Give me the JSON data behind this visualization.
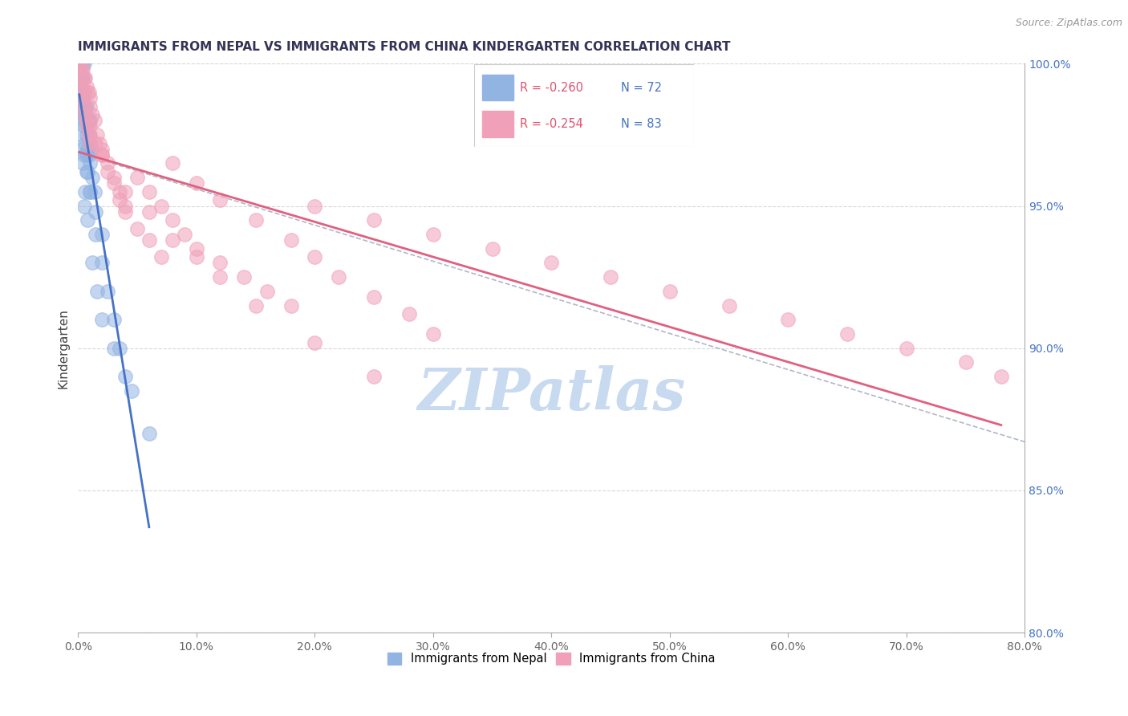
{
  "title": "IMMIGRANTS FROM NEPAL VS IMMIGRANTS FROM CHINA KINDERGARTEN CORRELATION CHART",
  "source_text": "Source: ZipAtlas.com",
  "ylabel": "Kindergarten",
  "xlim": [
    0.0,
    80.0
  ],
  "ylim": [
    80.0,
    100.0
  ],
  "yticks": [
    80.0,
    85.0,
    90.0,
    95.0,
    100.0
  ],
  "xticks": [
    0.0,
    10.0,
    20.0,
    30.0,
    40.0,
    50.0,
    60.0,
    70.0,
    80.0
  ],
  "nepal_color": "#92b4e3",
  "china_color": "#f0a0b8",
  "nepal_line_color": "#4472c4",
  "china_line_color": "#e06080",
  "nepal_R": -0.26,
  "nepal_N": 72,
  "china_R": -0.254,
  "china_N": 83,
  "legend_nepal_label": "Immigrants from Nepal",
  "legend_china_label": "Immigrants from China",
  "nepal_x": [
    0.1,
    0.2,
    0.3,
    0.4,
    0.5,
    0.1,
    0.2,
    0.3,
    0.4,
    0.5,
    0.1,
    0.2,
    0.3,
    0.4,
    0.5,
    0.6,
    0.7,
    0.8,
    0.9,
    1.0,
    0.2,
    0.3,
    0.4,
    0.5,
    0.6,
    0.7,
    0.8,
    0.9,
    1.0,
    1.1,
    0.3,
    0.4,
    0.5,
    0.6,
    0.7,
    0.8,
    0.9,
    1.0,
    1.2,
    1.4,
    0.2,
    0.3,
    0.4,
    0.5,
    0.6,
    0.7,
    0.8,
    1.0,
    1.5,
    2.0,
    0.3,
    0.5,
    0.7,
    1.0,
    1.5,
    2.0,
    2.5,
    3.0,
    3.5,
    4.0,
    0.2,
    0.4,
    0.6,
    0.8,
    1.2,
    1.6,
    2.0,
    3.0,
    4.5,
    6.0,
    0.3,
    0.5
  ],
  "nepal_y": [
    100.0,
    100.0,
    100.0,
    100.0,
    100.0,
    99.5,
    99.5,
    99.5,
    99.5,
    99.0,
    99.0,
    99.0,
    99.0,
    98.5,
    98.5,
    98.5,
    98.5,
    98.0,
    98.0,
    98.0,
    99.2,
    99.0,
    98.8,
    98.5,
    98.2,
    98.0,
    97.8,
    97.5,
    97.2,
    97.0,
    98.8,
    98.5,
    98.2,
    98.0,
    97.5,
    97.0,
    96.8,
    96.5,
    96.0,
    95.5,
    99.3,
    98.8,
    98.3,
    97.8,
    97.2,
    96.8,
    96.2,
    95.5,
    94.8,
    94.0,
    97.5,
    96.8,
    96.2,
    95.5,
    94.0,
    93.0,
    92.0,
    91.0,
    90.0,
    89.0,
    98.0,
    96.5,
    95.5,
    94.5,
    93.0,
    92.0,
    91.0,
    90.0,
    88.5,
    87.0,
    97.0,
    95.0
  ],
  "china_x": [
    0.1,
    0.2,
    0.3,
    0.4,
    0.5,
    0.6,
    0.7,
    0.8,
    0.9,
    1.0,
    0.1,
    0.2,
    0.3,
    0.4,
    0.5,
    0.6,
    0.7,
    0.8,
    0.9,
    1.0,
    1.0,
    1.2,
    1.4,
    1.6,
    1.8,
    2.0,
    2.5,
    3.0,
    3.5,
    4.0,
    1.0,
    1.5,
    2.0,
    2.5,
    3.0,
    3.5,
    4.0,
    5.0,
    6.0,
    7.0,
    5.0,
    6.0,
    7.0,
    8.0,
    9.0,
    10.0,
    12.0,
    14.0,
    16.0,
    18.0,
    8.0,
    10.0,
    12.0,
    15.0,
    18.0,
    20.0,
    22.0,
    25.0,
    28.0,
    30.0,
    20.0,
    25.0,
    30.0,
    35.0,
    40.0,
    45.0,
    50.0,
    55.0,
    60.0,
    65.0,
    70.0,
    75.0,
    78.0,
    1.0,
    2.0,
    4.0,
    6.0,
    8.0,
    10.0,
    12.0,
    15.0,
    20.0,
    25.0
  ],
  "china_y": [
    100.0,
    100.0,
    99.8,
    99.8,
    99.5,
    99.5,
    99.2,
    99.0,
    99.0,
    98.8,
    99.5,
    99.2,
    99.0,
    98.8,
    98.5,
    98.2,
    98.0,
    97.8,
    97.5,
    97.2,
    98.5,
    98.2,
    98.0,
    97.5,
    97.2,
    97.0,
    96.5,
    96.0,
    95.5,
    95.0,
    97.8,
    97.2,
    96.8,
    96.2,
    95.8,
    95.2,
    94.8,
    94.2,
    93.8,
    93.2,
    96.0,
    95.5,
    95.0,
    94.5,
    94.0,
    93.5,
    93.0,
    92.5,
    92.0,
    91.5,
    96.5,
    95.8,
    95.2,
    94.5,
    93.8,
    93.2,
    92.5,
    91.8,
    91.2,
    90.5,
    95.0,
    94.5,
    94.0,
    93.5,
    93.0,
    92.5,
    92.0,
    91.5,
    91.0,
    90.5,
    90.0,
    89.5,
    89.0,
    97.5,
    96.8,
    95.5,
    94.8,
    93.8,
    93.2,
    92.5,
    91.5,
    90.2,
    89.0
  ],
  "watermark": "ZIPatlas",
  "watermark_color": "#c8daf0",
  "background_color": "#ffffff",
  "grid_color": "#d8d8d8"
}
